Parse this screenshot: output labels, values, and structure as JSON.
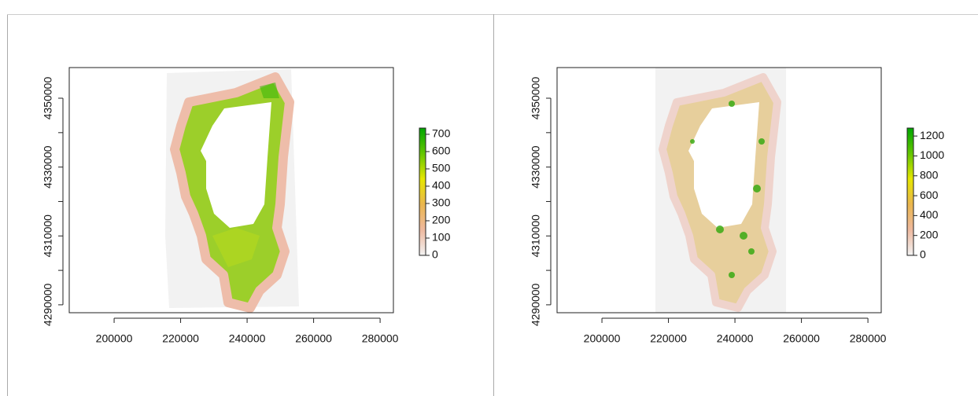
{
  "chart_data": [
    {
      "type": "raster",
      "xlim": [
        186500,
        284000
      ],
      "ylim": [
        4287700,
        4358900
      ],
      "xticks": [
        200000,
        220000,
        240000,
        260000,
        280000
      ],
      "yticks": [
        4290000,
        4310000,
        4330000,
        4350000
      ],
      "yminor": [
        4300000,
        4320000,
        4340000
      ],
      "colors": [
        "#F2F2F2",
        "#EEB99F",
        "#EAB64E",
        "#E6E600",
        "#63C600",
        "#00A600"
      ],
      "colorbar": {
        "lim": [
          0,
          736
        ],
        "ticks": [
          0,
          100,
          200,
          300,
          400,
          500,
          600,
          700
        ]
      }
    },
    {
      "type": "raster",
      "xlim": [
        186500,
        284000
      ],
      "ylim": [
        4287700,
        4358900
      ],
      "xticks": [
        200000,
        220000,
        240000,
        260000,
        280000
      ],
      "yticks": [
        4290000,
        4310000,
        4330000,
        4350000
      ],
      "yminor": [
        4300000,
        4320000,
        4340000
      ],
      "colors": [
        "#F2F2F2",
        "#EEB99F",
        "#EAB64E",
        "#E6E600",
        "#63C600",
        "#00A600"
      ],
      "colorbar": {
        "lim": [
          0,
          1280
        ],
        "ticks": [
          0,
          200,
          400,
          600,
          800,
          1000,
          1200
        ]
      }
    }
  ]
}
